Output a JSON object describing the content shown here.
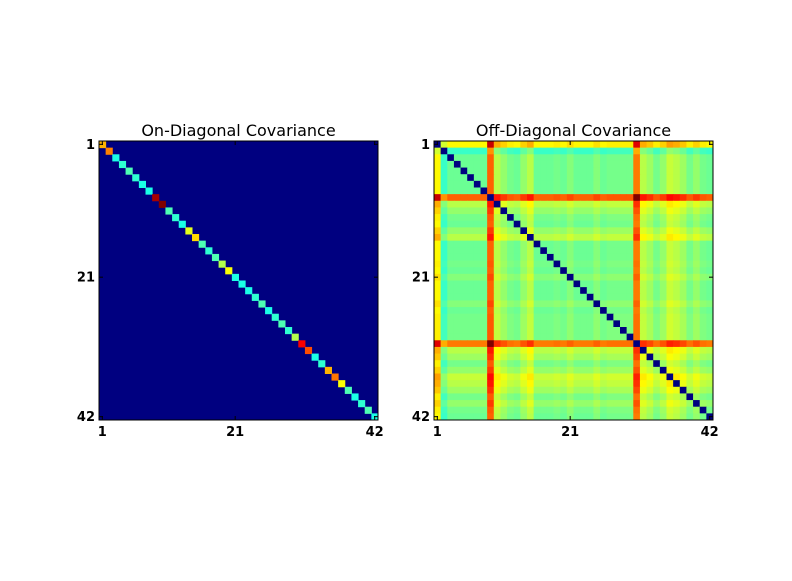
{
  "chart_data": [
    {
      "type": "heatmap",
      "title": "On-Diagonal Covariance",
      "xlabel": "",
      "ylabel": "",
      "size": 42,
      "colormap": "jet",
      "xticks": [
        "1",
        "21",
        "42"
      ],
      "yticks": [
        "1",
        "21",
        "42"
      ],
      "off_diagonal_value": 0.0,
      "diagonal": [
        0.7,
        0.75,
        0.4,
        0.42,
        0.45,
        0.42,
        0.4,
        0.4,
        0.96,
        1.0,
        0.45,
        0.42,
        0.4,
        0.6,
        0.66,
        0.45,
        0.42,
        0.45,
        0.55,
        0.62,
        0.4,
        0.4,
        0.4,
        0.42,
        0.45,
        0.4,
        0.42,
        0.45,
        0.42,
        0.55,
        0.88,
        0.8,
        0.4,
        0.42,
        0.7,
        0.76,
        0.62,
        0.45,
        0.4,
        0.42,
        0.45,
        0.4
      ]
    },
    {
      "type": "heatmap",
      "title": "Off-Diagonal Covariance",
      "xlabel": "",
      "ylabel": "",
      "size": 42,
      "colormap": "jet",
      "xticks": [
        "1",
        "21",
        "42"
      ],
      "yticks": [
        "1",
        "21",
        "42"
      ],
      "diagonal_value": 0.0,
      "row_scores": [
        0.7,
        0.3,
        0.4,
        0.4,
        0.4,
        0.4,
        0.4,
        0.4,
        1.0,
        0.55,
        0.48,
        0.42,
        0.4,
        0.48,
        0.55,
        0.4,
        0.4,
        0.4,
        0.42,
        0.4,
        0.45,
        0.4,
        0.4,
        0.4,
        0.45,
        0.4,
        0.42,
        0.42,
        0.42,
        0.42,
        0.95,
        0.55,
        0.5,
        0.42,
        0.48,
        0.58,
        0.55,
        0.5,
        0.42,
        0.48,
        0.42,
        0.4
      ]
    }
  ]
}
